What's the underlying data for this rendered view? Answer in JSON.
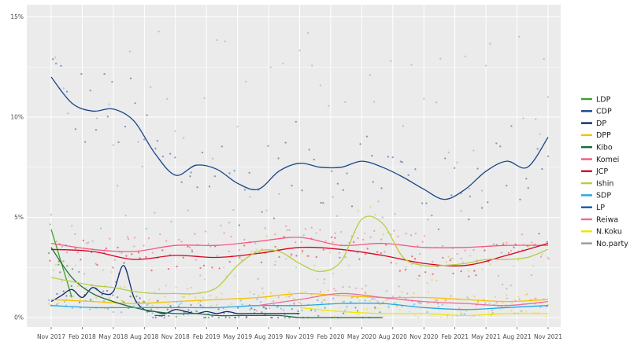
{
  "chart_data": {
    "type": "line",
    "title": "",
    "xlabel": "",
    "ylabel": "",
    "ylim": [
      0,
      15
    ],
    "xlim": [
      "2017-11",
      "2021-11"
    ],
    "grid": true,
    "legend_position": "right",
    "x_ticks": [
      "Nov 2017",
      "Feb 2018",
      "May 2018",
      "Aug 2018",
      "Nov 2018",
      "Feb 2019",
      "May 2019",
      "Aug 2019",
      "Nov 2019",
      "Feb 2020",
      "May 2020",
      "Aug 2020",
      "Nov 2020",
      "Feb 2021",
      "May 2021",
      "Aug 2021",
      "Nov 2021"
    ],
    "y_ticks": [
      "0%",
      "5%",
      "10%",
      "15%"
    ],
    "y_tick_values": [
      0,
      5,
      10,
      15
    ],
    "series": [
      {
        "name": "LDP",
        "color": "#3ca324",
        "x": [
          0,
          2
        ],
        "values": [
          4.4,
          1.0
        ]
      },
      {
        "name": "CDP",
        "color": "#184589",
        "x": [
          0,
          2,
          4,
          6,
          8,
          10,
          12,
          14,
          16,
          18,
          20,
          22,
          24,
          26,
          28,
          30,
          32,
          34,
          36,
          38,
          40,
          42,
          44,
          46,
          48
        ],
        "values": [
          12.0,
          10.7,
          10.3,
          10.4,
          9.8,
          8.2,
          7.1,
          7.6,
          7.4,
          6.7,
          6.4,
          7.3,
          7.7,
          7.5,
          7.5,
          7.8,
          7.5,
          7.0,
          6.4,
          5.9,
          6.4,
          7.3,
          7.8,
          7.5,
          9.0
        ]
      },
      {
        "name": "DP",
        "color": "#0f2a74",
        "x": [
          0,
          1,
          2,
          3,
          4,
          5,
          6,
          7,
          8,
          9,
          10,
          11,
          12,
          13,
          14,
          15,
          16,
          17,
          18,
          19,
          20,
          21,
          22,
          23,
          24
        ],
        "values": [
          0.8,
          1.1,
          1.4,
          1.0,
          1.5,
          1.2,
          1.3,
          2.6,
          1.0,
          0.4,
          0.3,
          0.2,
          0.4,
          0.3,
          0.2,
          0.3,
          0.2,
          0.3,
          0.2,
          0.2,
          0.2,
          0.2,
          0.2,
          0.2,
          0.2
        ]
      },
      {
        "name": "DPP",
        "color": "#f2c100",
        "x": [
          0,
          4,
          8,
          12,
          16,
          20,
          24,
          28,
          32,
          36,
          40,
          44,
          48
        ],
        "values": [
          0.9,
          0.8,
          0.7,
          0.8,
          0.9,
          1.0,
          1.2,
          1.1,
          1.0,
          1.0,
          0.9,
          0.8,
          0.9
        ]
      },
      {
        "name": "Kibo",
        "color": "#1a6b3a",
        "x": [
          0,
          2,
          4,
          6,
          8,
          10,
          12,
          14,
          16,
          18,
          20,
          22,
          24,
          26,
          28,
          30,
          32
        ],
        "values": [
          3.5,
          2.0,
          1.2,
          0.8,
          0.5,
          0.3,
          0.2,
          0.2,
          0.1,
          0.1,
          0.1,
          0.1,
          0.0,
          0.0,
          0.0,
          0.0,
          0.0
        ]
      },
      {
        "name": "Komei",
        "color": "#f55881",
        "x": [
          0,
          4,
          8,
          12,
          16,
          20,
          24,
          28,
          32,
          36,
          40,
          44,
          48
        ],
        "values": [
          3.7,
          3.4,
          3.3,
          3.6,
          3.6,
          3.8,
          4.0,
          3.6,
          3.7,
          3.5,
          3.5,
          3.6,
          3.6
        ]
      },
      {
        "name": "JCP",
        "color": "#db001c",
        "x": [
          0,
          4,
          8,
          12,
          16,
          20,
          24,
          28,
          32,
          36,
          40,
          44,
          48
        ],
        "values": [
          3.4,
          3.3,
          2.9,
          3.1,
          3.0,
          3.2,
          3.5,
          3.4,
          3.1,
          2.7,
          2.6,
          3.1,
          3.7
        ]
      },
      {
        "name": "Ishin",
        "color": "#b8ce43",
        "x": [
          0,
          2,
          4,
          6,
          8,
          10,
          12,
          14,
          16,
          18,
          20,
          22,
          24,
          26,
          28,
          30,
          32,
          34,
          36,
          38,
          40,
          42,
          44,
          46,
          48
        ],
        "values": [
          2.0,
          1.8,
          1.6,
          1.5,
          1.3,
          1.2,
          1.2,
          1.2,
          1.5,
          2.6,
          3.3,
          3.3,
          2.7,
          2.3,
          2.8,
          4.9,
          4.7,
          3.0,
          2.6,
          2.6,
          2.7,
          2.9,
          2.9,
          3.0,
          3.4
        ]
      },
      {
        "name": "SDP",
        "color": "#1ca9e9",
        "x": [
          0,
          4,
          8,
          12,
          16,
          20,
          24,
          28,
          32,
          36,
          40,
          44,
          48
        ],
        "values": [
          0.6,
          0.5,
          0.5,
          0.5,
          0.5,
          0.6,
          0.6,
          0.7,
          0.7,
          0.5,
          0.4,
          0.5,
          0.6
        ]
      },
      {
        "name": "LP",
        "color": "#0b5fa5",
        "x": [
          10,
          11
        ],
        "values": [
          0.1,
          0.1
        ]
      },
      {
        "name": "Reiwa",
        "color": "#ed6d97",
        "x": [
          20,
          24,
          28,
          32,
          36,
          40,
          44,
          48
        ],
        "values": [
          0.6,
          0.9,
          1.2,
          1.0,
          0.8,
          0.7,
          0.6,
          0.8
        ]
      },
      {
        "name": "N.Koku",
        "color": "#f0e500",
        "x": [
          24,
          28,
          32,
          36,
          40,
          44,
          48
        ],
        "values": [
          0.5,
          0.3,
          0.2,
          0.2,
          0.1,
          0.2,
          0.2
        ]
      },
      {
        "name": "No.party",
        "color": "#999999",
        "x": [],
        "values": []
      }
    ]
  }
}
